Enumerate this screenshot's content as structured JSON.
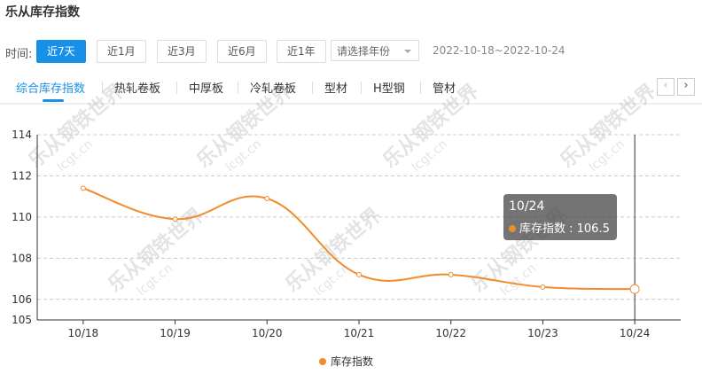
{
  "header": {
    "title": "乐从库存指数"
  },
  "filters": {
    "label": "时间:",
    "options": [
      "近7天",
      "近1月",
      "近3月",
      "近6月",
      "近1年"
    ],
    "active": 0,
    "year_select": "请选择年份",
    "date_range": "2022-10-18~2022-10-24"
  },
  "tabs": {
    "items": [
      "综合库存指数",
      "热轧卷板",
      "中厚板",
      "冷轧卷板",
      "型材",
      "H型钢",
      "管材"
    ],
    "active": 0
  },
  "watermark": {
    "name": "乐从钢铁世界",
    "site": "lcgt.cn"
  },
  "chart_data": {
    "type": "line",
    "categories": [
      "10/18",
      "10/19",
      "10/20",
      "10/21",
      "10/22",
      "10/23",
      "10/24"
    ],
    "series": [
      {
        "name": "库存指数",
        "color": "#f28c2b",
        "values": [
          111.4,
          109.9,
          110.9,
          107.2,
          107.2,
          106.6,
          106.5
        ]
      }
    ],
    "ylim": [
      105,
      114
    ],
    "yticks": [
      105,
      106,
      108,
      110,
      112,
      114
    ],
    "grid": true,
    "tooltip": {
      "title": "10/24",
      "text": "库存指数 : 106.5"
    }
  }
}
